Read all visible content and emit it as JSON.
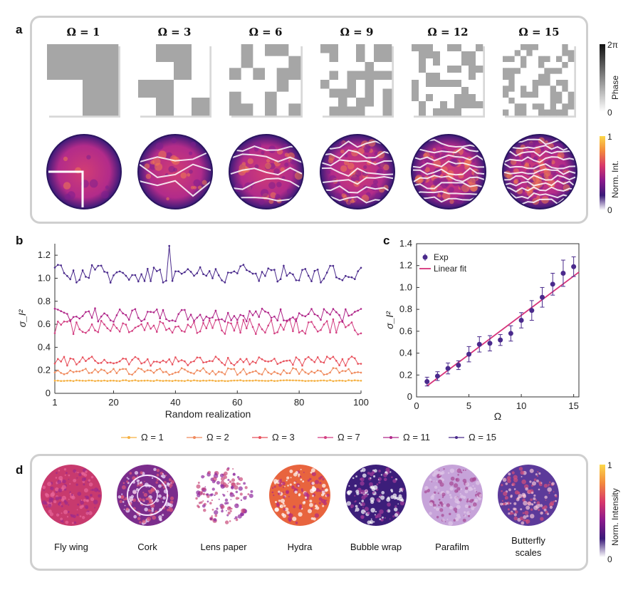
{
  "panels": {
    "a": "a",
    "b": "b",
    "c": "c",
    "d": "d"
  },
  "panel_a": {
    "titles": [
      "Ω = 1",
      "Ω = 3",
      "Ω = 6",
      "Ω = 9",
      "Ω = 12",
      "Ω = 15"
    ],
    "grid_sizes": [
      2,
      4,
      6,
      8,
      10,
      12
    ],
    "phase_colorbar": {
      "max": "2π",
      "min": "0",
      "label": "Phase"
    },
    "intensity_colorbar": {
      "max": "1",
      "min": "0",
      "label": "Norm. Int."
    }
  },
  "legend": {
    "entries": [
      "Ω = 1",
      "Ω = 2",
      "Ω = 3",
      "Ω = 7",
      "Ω = 11",
      "Ω = 15"
    ]
  },
  "chart_data": [
    {
      "type": "line",
      "panel": "b",
      "xlabel": "Random realization",
      "ylabel": "σ_I²",
      "xlim": [
        1,
        100
      ],
      "ylim": [
        0,
        1.3
      ],
      "xticks": [
        "1",
        "20",
        "40",
        "60",
        "80",
        "100"
      ],
      "yticks": [
        "0",
        "0.2",
        "0.4",
        "0.6",
        "0.8",
        "1.0",
        "1.2"
      ],
      "series": [
        {
          "name": "Ω = 1",
          "color": "#f5b041",
          "mean": 0.11,
          "amp": 0.004
        },
        {
          "name": "Ω = 2",
          "color": "#f08a5d",
          "mean": 0.19,
          "amp": 0.03
        },
        {
          "name": "Ω = 3",
          "color": "#e8505b",
          "mean": 0.28,
          "amp": 0.04
        },
        {
          "name": "Ω = 7",
          "color": "#d33f82",
          "mean": 0.58,
          "amp": 0.07
        },
        {
          "name": "Ω = 11",
          "color": "#b0278a",
          "mean": 0.68,
          "amp": 0.06
        },
        {
          "name": "Ω = 15",
          "color": "#4a2a8c",
          "mean": 1.04,
          "amp": 0.08
        }
      ]
    },
    {
      "type": "scatter",
      "panel": "c",
      "xlabel": "Ω",
      "ylabel": "σ_I²",
      "xlim": [
        0,
        15.5
      ],
      "ylim": [
        0,
        1.4
      ],
      "xticks": [
        "0",
        "5",
        "10",
        "15"
      ],
      "yticks": [
        "0",
        "0.2",
        "0.4",
        "0.6",
        "0.8",
        "1.0",
        "1.2",
        "1.4"
      ],
      "legend": [
        "Exp",
        "Linear fit"
      ],
      "x": [
        1,
        2,
        3,
        4,
        5,
        6,
        7,
        8,
        9,
        10,
        11,
        12,
        13,
        14,
        15
      ],
      "y": [
        0.14,
        0.19,
        0.26,
        0.29,
        0.39,
        0.48,
        0.49,
        0.52,
        0.58,
        0.7,
        0.79,
        0.91,
        1.03,
        1.13,
        1.19
      ],
      "err": [
        0.04,
        0.04,
        0.05,
        0.04,
        0.07,
        0.07,
        0.07,
        0.05,
        0.07,
        0.07,
        0.09,
        0.09,
        0.1,
        0.12,
        0.09
      ],
      "fit": {
        "x": [
          1,
          15.5
        ],
        "y": [
          0.1,
          1.14
        ]
      }
    }
  ],
  "panel_d": {
    "samples": [
      "Fly wing",
      "Cork",
      "Lens paper",
      "Hydra",
      "Bubble wrap",
      "Parafilm",
      "Butterfly scales"
    ],
    "colorbar": {
      "max": "1",
      "min": "0",
      "label": "Norm. Intensity"
    }
  }
}
